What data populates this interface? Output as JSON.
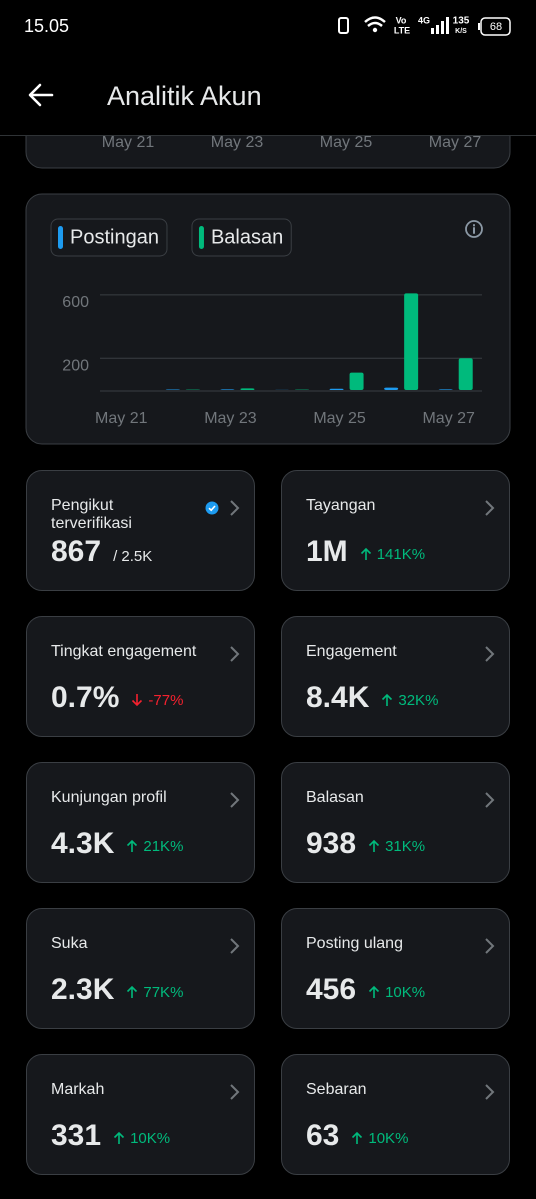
{
  "status_bar": {
    "time": "15.05",
    "volte_top": "Vo",
    "volte_bottom": "LTE",
    "network": "4G",
    "speed": "135",
    "speed_unit": "K/S",
    "battery": "68"
  },
  "header": {
    "title": "Analitik Akun"
  },
  "previous_chart": {
    "x_labels": [
      "May 21",
      "May 23",
      "May 25",
      "May 27"
    ]
  },
  "chart_data": {
    "type": "bar",
    "categories": [
      "May 21",
      null,
      "May 23",
      null,
      "May 25",
      null,
      "May 27"
    ],
    "series": [
      {
        "name": "Postingan",
        "color": "#1d9bf0",
        "values": [
          0,
          3,
          4,
          1,
          8,
          15,
          4
        ]
      },
      {
        "name": "Balasan",
        "color": "#00ba7c",
        "values": [
          0,
          2,
          10,
          2,
          110,
          610,
          200
        ]
      }
    ],
    "ylim": [
      0,
      650
    ],
    "yticks": [
      200,
      600
    ],
    "grid": true
  },
  "cards": [
    {
      "title": "Pengikut terverifikasi",
      "value": "867",
      "total": "/ 2.5K",
      "verified": true
    },
    {
      "title": "Tayangan",
      "value": "1M",
      "change": {
        "direction": "up",
        "text": "141K%"
      }
    },
    {
      "title": "Tingkat engagement",
      "value": "0.7%",
      "change": {
        "direction": "down",
        "text": "-77%"
      }
    },
    {
      "title": "Engagement",
      "value": "8.4K",
      "change": {
        "direction": "up",
        "text": "32K%"
      }
    },
    {
      "title": "Kunjungan profil",
      "value": "4.3K",
      "change": {
        "direction": "up",
        "text": "21K%"
      }
    },
    {
      "title": "Balasan",
      "value": "938",
      "change": {
        "direction": "up",
        "text": "31K%"
      }
    },
    {
      "title": "Suka",
      "value": "2.3K",
      "change": {
        "direction": "up",
        "text": "77K%"
      }
    },
    {
      "title": "Posting ulang",
      "value": "456",
      "change": {
        "direction": "up",
        "text": "10K%"
      }
    },
    {
      "title": "Markah",
      "value": "331",
      "change": {
        "direction": "up",
        "text": "10K%"
      }
    },
    {
      "title": "Sebaran",
      "value": "63",
      "change": {
        "direction": "up",
        "text": "10K%"
      }
    }
  ]
}
